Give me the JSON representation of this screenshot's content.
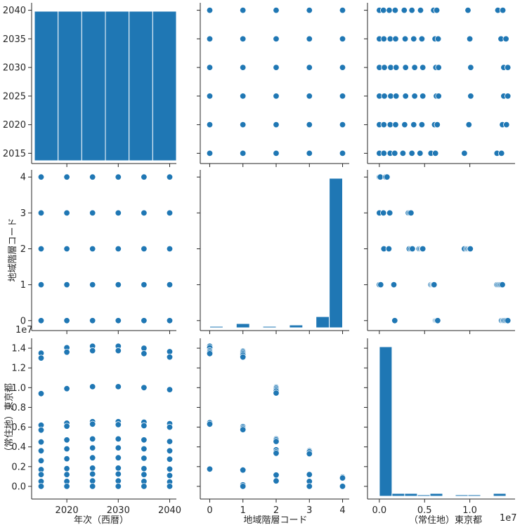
{
  "chart_data": {
    "type": "scatter",
    "kind": "pairplot",
    "color": "#1f77b4",
    "variables": [
      "年次（西暦）",
      "地域階層コード",
      "（常住地）東京都"
    ],
    "axes": {
      "year": {
        "lim": [
          2013.7,
          2041.3
        ],
        "ticks": [
          2015,
          2020,
          2025,
          2030,
          2035,
          2040
        ],
        "x_ticks": [
          2020,
          2030,
          2040
        ]
      },
      "code": {
        "lim": [
          -0.2,
          4.2
        ],
        "ticks": [
          0,
          1,
          2,
          3,
          4
        ]
      },
      "tokyo": {
        "lim": [
          -1000000,
          15000000
        ],
        "y_ticks": [
          0.0,
          0.2,
          0.4,
          0.6,
          0.8,
          1.0,
          1.2,
          1.4
        ],
        "x_ticks": [
          0.0,
          0.5,
          1.0
        ],
        "offset_text": "1e7"
      }
    },
    "year_hist": {
      "bins": [
        [
          2013.7,
          2018.3
        ],
        [
          2018.3,
          2022.9
        ],
        [
          2022.9,
          2027.5
        ],
        [
          2027.5,
          2032.1
        ],
        [
          2032.1,
          2036.7
        ],
        [
          2036.7,
          2041.3
        ]
      ],
      "counts": [
        1,
        1,
        1,
        1,
        1,
        1
      ]
    },
    "code_hist": {
      "bins": [
        [
          0.0,
          0.4
        ],
        [
          0.8,
          1.2
        ],
        [
          1.6,
          2.0
        ],
        [
          2.4,
          2.8
        ],
        [
          3.2,
          3.6
        ],
        [
          3.6,
          4.0
        ]
      ],
      "counts": [
        1,
        3,
        1,
        2,
        8,
        107
      ]
    },
    "tokyo_hist": {
      "bins": [
        [
          0,
          1400000
        ],
        [
          1400000,
          2800000
        ],
        [
          2800000,
          4200000
        ],
        [
          4200000,
          5600000
        ],
        [
          5600000,
          7000000
        ],
        [
          7000000,
          8400000
        ],
        [
          8400000,
          9800000
        ],
        [
          9800000,
          11200000
        ],
        [
          11200000,
          12600000
        ],
        [
          12600000,
          14000000
        ]
      ],
      "counts": [
        107,
        2,
        2,
        1,
        2,
        0,
        1,
        1,
        0,
        2
      ]
    },
    "year_tokyo": {
      "2015": [
        13500000,
        13000000,
        9400000,
        6200000,
        5700000,
        4500000,
        3600000,
        2600000,
        1700000,
        1200000,
        500000,
        0
      ],
      "2020": [
        14050000,
        13600000,
        9900000,
        6400000,
        6100000,
        4700000,
        3800000,
        2800000,
        1800000,
        1200000,
        500000,
        0
      ],
      "2025": [
        14200000,
        13750000,
        10100000,
        6550000,
        6300000,
        4800000,
        3900000,
        2900000,
        1850000,
        1250000,
        550000,
        0
      ],
      "2030": [
        14200000,
        13750000,
        10100000,
        6550000,
        6250000,
        4800000,
        3900000,
        2900000,
        1850000,
        1250000,
        550000,
        0
      ],
      "2035": [
        14000000,
        13450000,
        10000000,
        6500000,
        6150000,
        4700000,
        3800000,
        2850000,
        1800000,
        1200000,
        500000,
        0
      ],
      "2040": [
        13650000,
        13100000,
        9800000,
        6350000,
        6000000,
        4550000,
        3600000,
        2750000,
        1750000,
        1100000,
        450000,
        0
      ]
    },
    "code_tokyo": {
      "0": [
        14200000,
        14050000,
        13750000,
        13600000,
        13450000,
        6450000,
        6300000,
        1750000
      ],
      "1": [
        13700000,
        13600000,
        13450000,
        13300000,
        13100000,
        6050000,
        5900000,
        5750000,
        1650000,
        150000,
        0
      ],
      "2": [
        10050000,
        9950000,
        9800000,
        9650000,
        9450000,
        4800000,
        4700000,
        4550000,
        3700000,
        3500000,
        3350000,
        1150000,
        550000
      ],
      "3": [
        3600000,
        3500000,
        3300000,
        1200000,
        500000,
        0
      ],
      "4": [
        950000,
        850000,
        0
      ]
    },
    "tokyo_code": {
      "0": [
        1700000,
        6200000,
        6300000,
        6350000,
        6450000,
        13500000,
        13650000,
        13750000,
        13900000,
        14050000,
        14200000
      ],
      "1": [
        0,
        150000,
        1600000,
        5700000,
        5850000,
        5950000,
        6050000,
        13000000,
        13150000,
        13300000,
        13450000,
        13600000
      ],
      "2": [
        500000,
        1050000,
        3300000,
        3500000,
        3650000,
        4400000,
        4550000,
        4700000,
        4800000,
        9400000,
        9650000,
        9800000,
        9950000,
        10050000
      ],
      "3": [
        0,
        450000,
        1150000,
        3200000,
        3350000,
        3500000
      ],
      "4": [
        0,
        100000,
        700000,
        850000
      ]
    },
    "tokyo_year_x": {
      "2015": [
        0,
        500000,
        1200000,
        1700000,
        2600000,
        3600000,
        4500000,
        5700000,
        6200000,
        9400000,
        13000000,
        13500000
      ],
      "2020": [
        0,
        500000,
        1200000,
        1800000,
        2800000,
        3800000,
        4700000,
        6100000,
        6400000,
        9900000,
        13600000,
        14050000
      ],
      "2025": [
        0,
        550000,
        1250000,
        1850000,
        2900000,
        3900000,
        4800000,
        6300000,
        6550000,
        10100000,
        13750000,
        14200000
      ],
      "2030": [
        0,
        550000,
        1250000,
        1850000,
        2900000,
        3900000,
        4800000,
        6250000,
        6550000,
        10100000,
        13750000,
        14200000
      ],
      "2035": [
        0,
        500000,
        1200000,
        1800000,
        2850000,
        3800000,
        4700000,
        6150000,
        6500000,
        10000000,
        13450000,
        14000000
      ],
      "2040": [
        0,
        450000,
        1100000,
        1750000,
        2750000,
        3600000,
        4550000,
        6000000,
        6350000,
        9800000,
        13100000,
        13650000
      ]
    }
  }
}
